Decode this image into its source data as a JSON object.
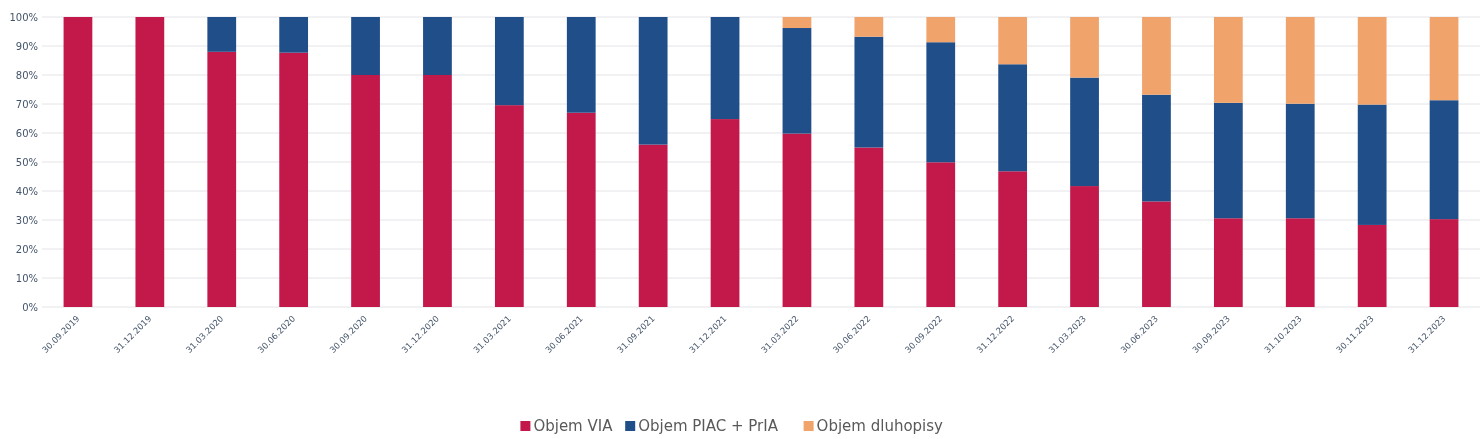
{
  "chart_data": {
    "type": "bar",
    "stacked": true,
    "categories": [
      "30.09.2019",
      "31.12.2019",
      "31.03.2020",
      "30.06.2020",
      "30.09.2020",
      "31.12.2020",
      "31.03.2021",
      "30.06.2021",
      "31.09.2021",
      "31.12.2021",
      "31.03.2022",
      "30.06.2022",
      "30.09.2022",
      "31.12.2022",
      "31.03.2023",
      "30.06.2023",
      "30.09.2023",
      "31.10.2023",
      "30.11.2023",
      "31.12.2023"
    ],
    "series": [
      {
        "name": "Objem VIA",
        "color": "#c2194a",
        "values": [
          100,
          100,
          88,
          87.7,
          80,
          80,
          69.6,
          67,
          56,
          64.8,
          59.8,
          55,
          49.9,
          46.8,
          41.7,
          36.4,
          30.6,
          30.6,
          28.3,
          30.3
        ]
      },
      {
        "name": "Objem PIAC + PrIA",
        "color": "#1f4e89",
        "values": [
          0,
          0,
          12,
          12.3,
          20,
          20,
          30.4,
          33,
          44,
          35.2,
          36.4,
          38.2,
          41.4,
          36.9,
          37.4,
          36.8,
          39.8,
          39.5,
          41.5,
          41
        ]
      },
      {
        "name": "Objem dluhopisy",
        "color": "#f0a46c",
        "values": [
          0,
          0,
          0,
          0,
          0,
          0,
          0,
          0,
          0,
          0,
          3.8,
          6.8,
          8.7,
          16.3,
          20.9,
          26.8,
          29.6,
          29.9,
          30.2,
          28.7
        ]
      }
    ],
    "ylim": [
      0,
      100
    ],
    "yticks": [
      {
        "value": 0,
        "label": "0%"
      },
      {
        "value": 10,
        "label": "10%"
      },
      {
        "value": 20,
        "label": "20%"
      },
      {
        "value": 30,
        "label": "30%"
      },
      {
        "value": 40,
        "label": "40%"
      },
      {
        "value": 50,
        "label": "50%"
      },
      {
        "value": 60,
        "label": "60%"
      },
      {
        "value": 70,
        "label": "70%"
      },
      {
        "value": 80,
        "label": "80%"
      },
      {
        "value": 90,
        "label": "90%"
      },
      {
        "value": 100,
        "label": "100%"
      }
    ],
    "grid": "y",
    "legend": "bottom"
  }
}
